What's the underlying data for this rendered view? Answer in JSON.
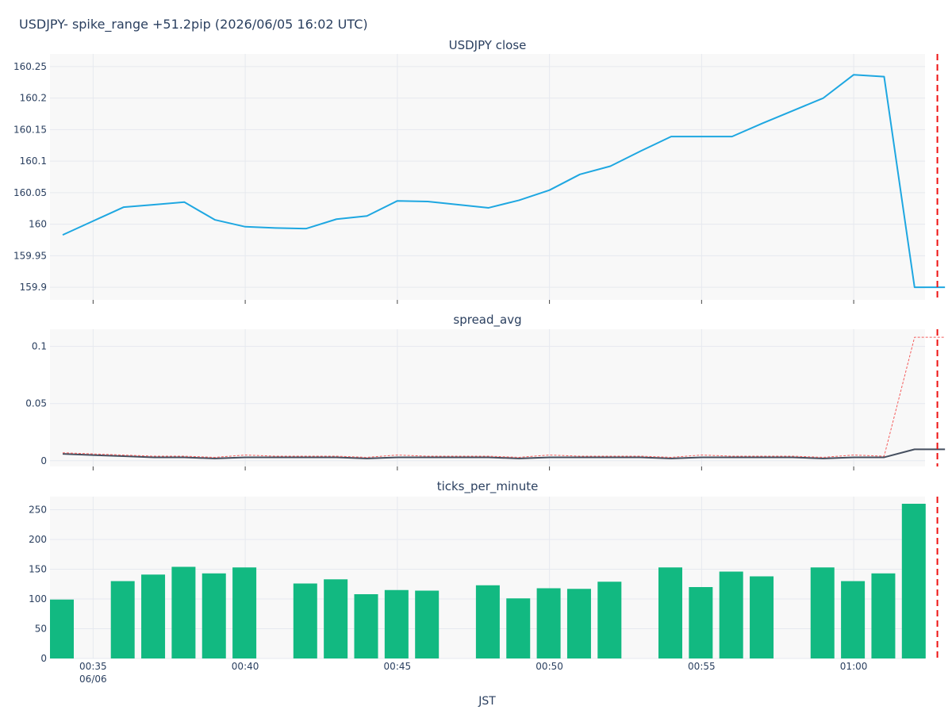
{
  "title": "USDJPY- spike_range +51.2pip (2026/06/05 16:02 UTC)",
  "xlabel": "JST",
  "colors": {
    "plot_bg": "#f8f8f8",
    "grid": "#e6e9ef",
    "close_line": "#1ea7e1",
    "spread_line": "#454f5f",
    "spread_dotted": "#f45b5b",
    "bars": "#12b981",
    "spike_marker": "#ee1111"
  },
  "chart_data": [
    {
      "type": "line",
      "title": "USDJPY close",
      "x": [
        "00:34",
        "00:35",
        "00:36",
        "00:37",
        "00:38",
        "00:39",
        "00:40",
        "00:41",
        "00:42",
        "00:43",
        "00:44",
        "00:45",
        "00:46",
        "00:47",
        "00:48",
        "00:49",
        "00:50",
        "00:51",
        "00:52",
        "00:53",
        "00:54",
        "00:55",
        "00:56",
        "00:57",
        "00:58",
        "00:59",
        "01:00",
        "01:01",
        "01:02",
        "01:03"
      ],
      "series": [
        {
          "values": [
            159.983,
            160.005,
            160.027,
            160.031,
            160.035,
            160.007,
            159.996,
            159.994,
            159.993,
            160.008,
            160.013,
            160.037,
            160.036,
            160.031,
            160.026,
            160.038,
            160.054,
            160.079,
            160.092,
            160.116,
            160.139,
            160.139,
            160.139,
            160.16,
            160.18,
            160.2,
            160.237,
            160.234,
            159.9,
            159.9
          ]
        }
      ],
      "y_ticks": [
        "160.25",
        "160.2",
        "160.15",
        "160.1",
        "160.05",
        "160",
        "159.95",
        "159.9"
      ],
      "ylim": [
        159.88,
        160.27
      ],
      "grid": true
    },
    {
      "type": "line",
      "title": "spread_avg",
      "x": [
        "00:34",
        "00:35",
        "00:36",
        "00:37",
        "00:38",
        "00:39",
        "00:40",
        "00:41",
        "00:42",
        "00:43",
        "00:44",
        "00:45",
        "00:46",
        "00:47",
        "00:48",
        "00:49",
        "00:50",
        "00:51",
        "00:52",
        "00:53",
        "00:54",
        "00:55",
        "00:56",
        "00:57",
        "00:58",
        "00:59",
        "01:00",
        "01:01",
        "01:02",
        "01:03"
      ],
      "series": [
        {
          "style": "solid",
          "values": [
            0.006,
            0.005,
            0.004,
            0.003,
            0.003,
            0.002,
            0.003,
            0.003,
            0.003,
            0.003,
            0.002,
            0.003,
            0.003,
            0.003,
            0.003,
            0.002,
            0.003,
            0.003,
            0.003,
            0.003,
            0.002,
            0.003,
            0.003,
            0.003,
            0.003,
            0.002,
            0.003,
            0.003,
            0.01,
            0.01
          ]
        },
        {
          "style": "dotted",
          "values": [
            0.007,
            0.006,
            0.005,
            0.004,
            0.004,
            0.003,
            0.005,
            0.004,
            0.004,
            0.004,
            0.003,
            0.005,
            0.004,
            0.004,
            0.004,
            0.003,
            0.005,
            0.004,
            0.004,
            0.004,
            0.003,
            0.005,
            0.004,
            0.004,
            0.004,
            0.003,
            0.005,
            0.004,
            0.108,
            0.108
          ]
        }
      ],
      "y_ticks": [
        "0.1",
        "0.05",
        "0"
      ],
      "ylim": [
        -0.005,
        0.115
      ],
      "grid": true
    },
    {
      "type": "bar",
      "title": "ticks_per_minute",
      "x": [
        "00:34",
        "00:35",
        "00:36",
        "00:37",
        "00:38",
        "00:39",
        "00:40",
        "00:41",
        "00:42",
        "00:43",
        "00:44",
        "00:45",
        "00:46",
        "00:47",
        "00:48",
        "00:49",
        "00:50",
        "00:51",
        "00:52",
        "00:53",
        "00:54",
        "00:55",
        "00:56",
        "00:57",
        "00:58",
        "00:59",
        "01:00",
        "01:01",
        "01:02",
        "01:03"
      ],
      "values": [
        99,
        null,
        130,
        141,
        154,
        143,
        153,
        null,
        126,
        133,
        108,
        115,
        114,
        null,
        123,
        101,
        118,
        117,
        129,
        null,
        153,
        120,
        146,
        138,
        null,
        153,
        130,
        143,
        260,
        null
      ],
      "y_ticks": [
        "250",
        "200",
        "150",
        "100",
        "50",
        "0"
      ],
      "ylim": [
        0,
        272
      ],
      "grid": true
    }
  ],
  "x_ticks": [
    {
      "label": "00:35",
      "sublabel": "06/06",
      "minute": 1
    },
    {
      "label": "00:40",
      "sublabel": "",
      "minute": 6
    },
    {
      "label": "00:45",
      "sublabel": "",
      "minute": 11
    },
    {
      "label": "00:50",
      "sublabel": "",
      "minute": 16
    },
    {
      "label": "00:55",
      "sublabel": "",
      "minute": 21
    },
    {
      "label": "01:00",
      "sublabel": "",
      "minute": 26
    }
  ],
  "spike_marker_minute": 28.75
}
